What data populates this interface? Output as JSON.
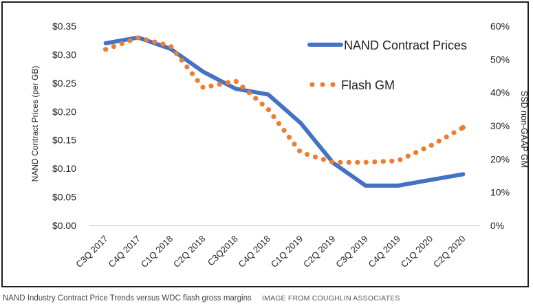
{
  "chart_data": {
    "type": "line",
    "categories": [
      "C3Q 2017",
      "C4Q 2017",
      "C1Q 2018",
      "C2Q 2018",
      "C3Q2018",
      "C4Q 2018",
      "C1Q 2019",
      "C2Q 2019",
      "C3Q 2019",
      "C4Q 2019",
      "C1Q 2020",
      "C2Q 2020"
    ],
    "ylabel": "NAND Contract Prices (per GB)",
    "y2label": "SSD non-GAAP GM",
    "ylim": [
      0,
      0.35
    ],
    "y2lim": [
      0,
      60
    ],
    "y_ticks": [
      "$0.00",
      "$0.05",
      "$0.10",
      "$0.15",
      "$0.20",
      "$0.25",
      "$0.30",
      "$0.35"
    ],
    "y2_ticks": [
      "0%",
      "10%",
      "20%",
      "30%",
      "40%",
      "50%",
      "60%"
    ],
    "grid": false,
    "legend_position": "top-right",
    "series": [
      {
        "name": "NAND Contract Prices",
        "axis": "left",
        "style": "solid",
        "color": "#4472C4",
        "values": [
          0.32,
          0.33,
          0.31,
          0.27,
          0.24,
          0.23,
          0.18,
          0.11,
          0.07,
          0.07,
          0.08,
          0.09
        ]
      },
      {
        "name": "Flash GM",
        "axis": "right",
        "style": "dotted",
        "color": "#ED7D31",
        "values": [
          53,
          56.5,
          54,
          41.5,
          43.5,
          35,
          22,
          19,
          19,
          19.5,
          24,
          29.5
        ]
      }
    ]
  },
  "caption": {
    "text": "NAND Industry Contract Price Trends versus WDC flash gross margins",
    "credit": "IMAGE FROM COUGHLIN ASSOCIATES"
  }
}
